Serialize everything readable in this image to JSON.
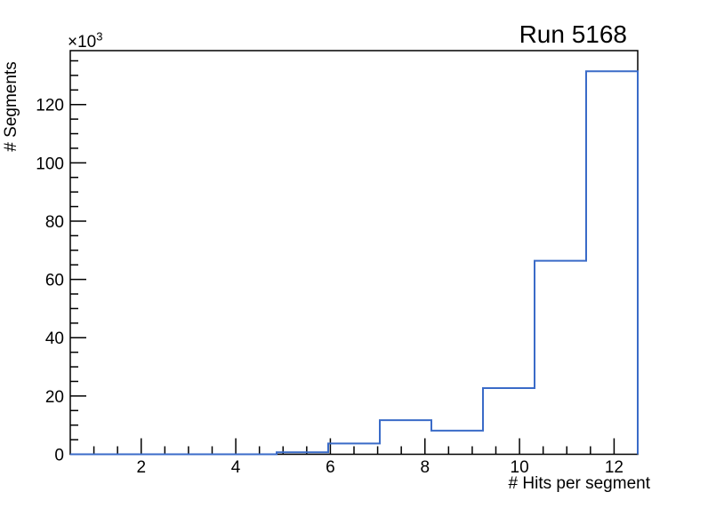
{
  "chart_data": {
    "type": "bar",
    "subtype": "step-histogram",
    "title": "Run 5168",
    "xlabel": "# Hits per segment",
    "ylabel": "# Segments",
    "y_scale_base": "×10",
    "y_scale_exp": "3",
    "y_unit_multiplier": 1000,
    "xlim": [
      0.5,
      12.5
    ],
    "ylim_thousands": [
      0,
      138.5
    ],
    "n_bins": 11,
    "bin_edges": [
      0.5,
      1.591,
      2.682,
      3.773,
      4.864,
      5.955,
      7.045,
      8.136,
      9.227,
      10.318,
      11.409,
      12.5
    ],
    "values_thousands": [
      0,
      0,
      0,
      0,
      0.7,
      3.7,
      11.7,
      8.1,
      22.7,
      66.4,
      131.4
    ],
    "x_major_ticks": [
      2,
      4,
      6,
      8,
      10,
      12
    ],
    "x_tick_labels": [
      "2",
      "4",
      "6",
      "8",
      "10",
      "12"
    ],
    "x_minor_tick_step": 0.5,
    "y_major_ticks": [
      0,
      20,
      40,
      60,
      80,
      100,
      120
    ],
    "y_tick_labels": [
      "0",
      "20",
      "40",
      "60",
      "80",
      "100",
      "120"
    ],
    "y_minor_tick_step": 5,
    "grid": false,
    "line_color": "#3a6bc8",
    "axis_color": "#000000",
    "background_color": "#ffffff"
  }
}
